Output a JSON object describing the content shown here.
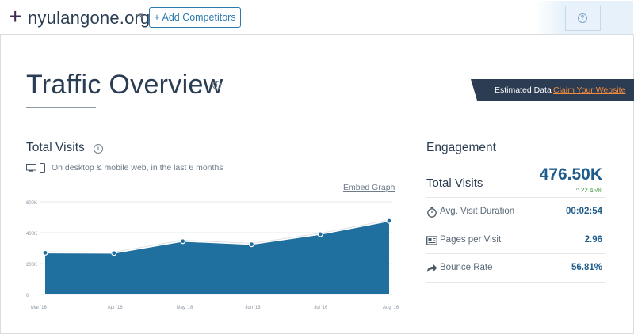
{
  "header": {
    "domain": "nyulangone.org",
    "add_competitors_label": "+ Add Competitors",
    "help_symbol": "?"
  },
  "title": {
    "text": "Traffic Overview",
    "info_symbol": "i"
  },
  "banner": {
    "estimated_label": "Estimated Data",
    "claim_label": "Claim Your Website"
  },
  "total_visits": {
    "title": "Total Visits",
    "subtitle": "On desktop & mobile web, in the last 6 months",
    "embed_label": "Embed Graph"
  },
  "chart_data": {
    "type": "area",
    "categories": [
      "Mar '16",
      "Apr '16",
      "May '16",
      "Jun '16",
      "Jul '16",
      "Aug '16"
    ],
    "values": [
      270000,
      268000,
      345000,
      325000,
      390000,
      476500
    ],
    "ylim": [
      0,
      600000
    ],
    "y_ticks": [
      "0",
      "200K",
      "400K",
      "600K"
    ],
    "grid": true,
    "fill_color": "#1f6f9f"
  },
  "engagement": {
    "title": "Engagement",
    "total_visits_label": "Total Visits",
    "total_visits_value": "476.50K",
    "change": "^ 22.45%",
    "rows": [
      {
        "label": "Avg. Visit Duration",
        "value": "00:02:54",
        "icon": "stopwatch-icon"
      },
      {
        "label": "Pages per Visit",
        "value": "2.96",
        "icon": "pages-icon"
      },
      {
        "label": "Bounce Rate",
        "value": "56.81%",
        "icon": "bounce-arrow-icon"
      }
    ]
  },
  "colors": {
    "accent": "#2a7ab0",
    "chart_fill": "#1f6f9f",
    "banner": "#2c3d53",
    "claim": "#f08a3c",
    "positive": "#3f9a3f"
  }
}
